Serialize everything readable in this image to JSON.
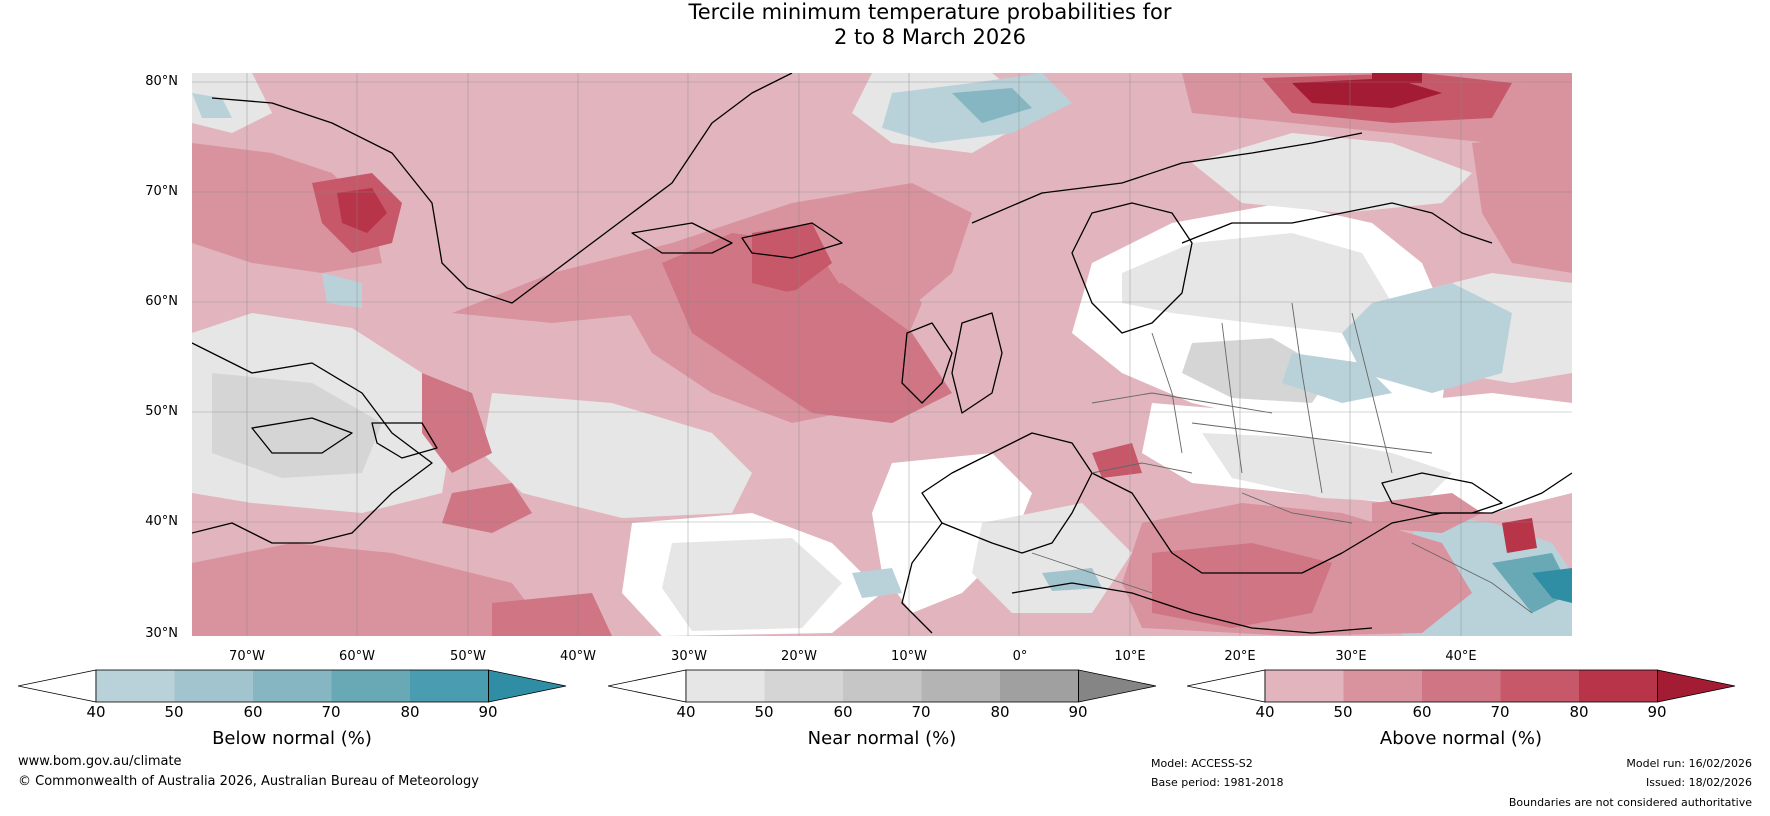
{
  "title": {
    "line1": "Tercile minimum temperature probabilities for",
    "line2": "2 to 8 March 2026"
  },
  "axes": {
    "lat_labels": [
      "80°N",
      "70°N",
      "60°N",
      "50°N",
      "40°N",
      "30°N"
    ],
    "lon_labels": [
      "70°W",
      "60°W",
      "50°W",
      "40°W",
      "30°W",
      "20°W",
      "10°W",
      "0°",
      "10°E",
      "20°E",
      "30°E",
      "40°E"
    ]
  },
  "map": {
    "extent": {
      "west": -75,
      "east": 50,
      "south": 30,
      "north": 80
    },
    "colors": {
      "below": [
        "#b9d2da",
        "#a2c4ce",
        "#85b6c2",
        "#68a9b5",
        "#4a9db0",
        "#2f8ea3"
      ],
      "near": [
        "#e6e6e6",
        "#d5d5d5",
        "#c6c6c6",
        "#b4b4b4",
        "#a0a0a0",
        "#858585"
      ],
      "above": [
        "#e2b5be",
        "#d9939f",
        "#cf7583",
        "#c65869",
        "#b83549",
        "#a31c34"
      ]
    }
  },
  "colorbars": [
    {
      "title": "Below normal (%)",
      "ticks": [
        "40",
        "50",
        "60",
        "70",
        "80",
        "90"
      ],
      "palette": "below"
    },
    {
      "title": "Near normal (%)",
      "ticks": [
        "40",
        "50",
        "60",
        "70",
        "80",
        "90"
      ],
      "palette": "near"
    },
    {
      "title": "Above normal (%)",
      "ticks": [
        "40",
        "50",
        "60",
        "70",
        "80",
        "90"
      ],
      "palette": "above"
    }
  ],
  "footer": {
    "website": "www.bom.gov.au/climate",
    "copyright": "© Commonwealth of Australia 2026, Australian Bureau of Meteorology",
    "model": "Model: ACCESS-S2",
    "base_period": "Base period: 1981-2018",
    "model_run": "Model run: 16/02/2026",
    "issued": "Issued: 18/02/2026",
    "disclaimer": "Boundaries are not considered authoritative"
  }
}
